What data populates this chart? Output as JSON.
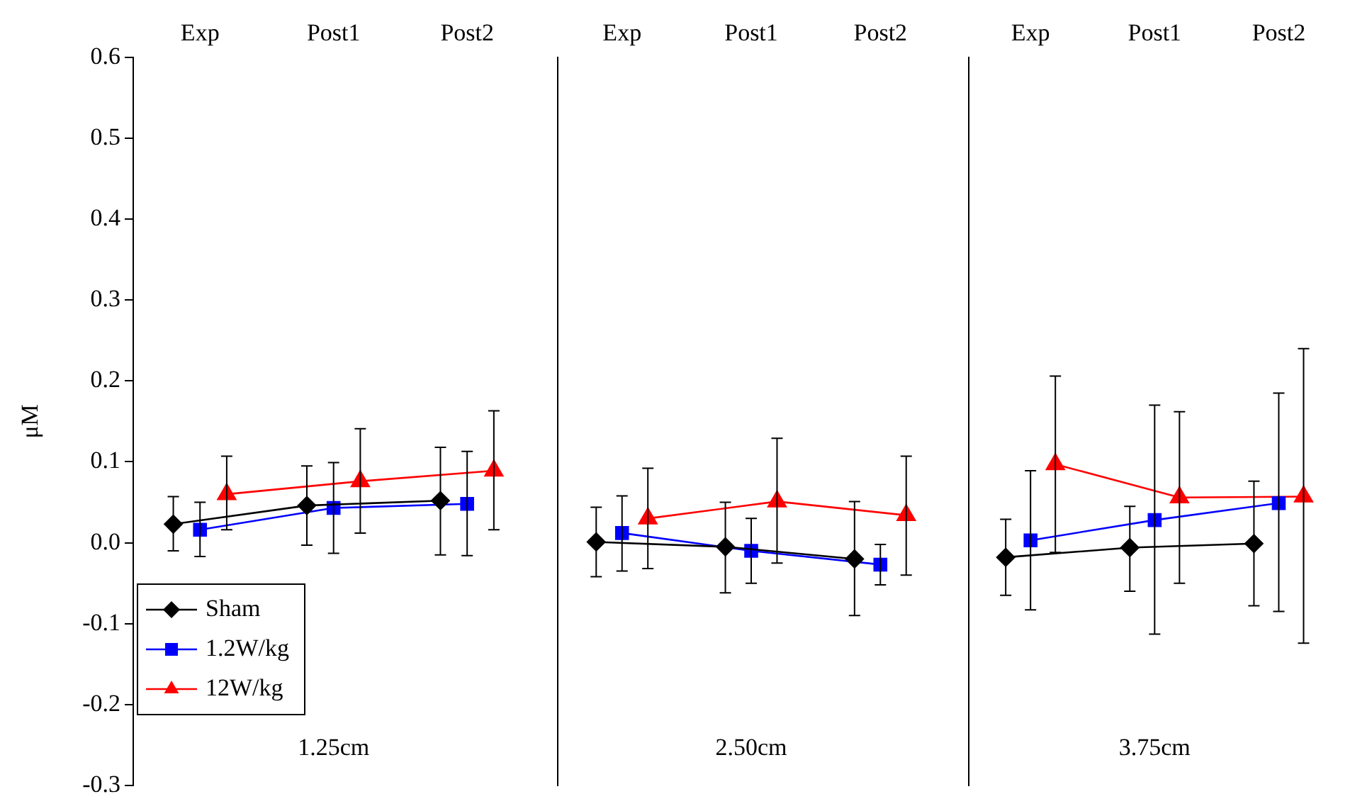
{
  "chart_data": [
    {
      "type": "line",
      "xlabel": "1.25cm",
      "ylabel": "μM",
      "categories": [
        "Exp",
        "Post1",
        "Post2"
      ],
      "ylim": [
        -0.3,
        0.6
      ],
      "yticks": [
        -0.3,
        -0.2,
        -0.1,
        {
          "value": 0,
          "label": "0.0"
        },
        0.1,
        0.2,
        0.3,
        0.4,
        0.5,
        0.6
      ],
      "grid": false,
      "legend": "bottom left",
      "series": [
        {
          "name": "Sham",
          "color": "#000000",
          "marker": "diamond",
          "values": [
            0.023,
            0.046,
            0.052
          ],
          "errors": [
            [
              -0.01,
              0.057
            ],
            [
              -0.003,
              0.095
            ],
            [
              -0.015,
              0.118
            ]
          ]
        },
        {
          "name": "1.2W/kg",
          "color": "#0000ff",
          "marker": "square",
          "values": [
            0.016,
            0.043,
            0.048
          ],
          "errors": [
            [
              -0.017,
              0.05
            ],
            [
              -0.013,
              0.099
            ],
            [
              -0.016,
              0.113
            ]
          ]
        },
        {
          "name": "12W/kg",
          "color": "#ff0000",
          "marker": "triangle",
          "values": [
            0.06,
            0.076,
            0.089
          ],
          "errors": [
            [
              0.016,
              0.107
            ],
            [
              0.012,
              0.141
            ],
            [
              0.016,
              0.163
            ]
          ]
        }
      ]
    },
    {
      "type": "line",
      "xlabel": "2.50cm",
      "categories": [
        "Exp",
        "Post1",
        "Post2"
      ],
      "ylim": [
        -0.3,
        0.6
      ],
      "grid": false,
      "tick_labels": "x",
      "series": [
        {
          "color": "#000000",
          "marker": "diamond",
          "values": [
            0.001,
            -0.005,
            -0.02
          ],
          "errors": [
            [
              -0.042,
              0.044
            ],
            [
              -0.062,
              0.05
            ],
            [
              -0.09,
              0.051
            ]
          ]
        },
        {
          "color": "#0000ff",
          "marker": "square",
          "values": [
            0.012,
            -0.01,
            -0.027
          ],
          "errors": [
            [
              -0.035,
              0.058
            ],
            [
              -0.05,
              0.03
            ],
            [
              -0.052,
              -0.002
            ]
          ]
        },
        {
          "color": "#ff0000",
          "marker": "triangle",
          "values": [
            0.03,
            0.051,
            0.034
          ],
          "errors": [
            [
              -0.032,
              0.092
            ],
            [
              -0.025,
              0.129
            ],
            [
              -0.04,
              0.107
            ]
          ]
        }
      ]
    },
    {
      "type": "line",
      "xlabel": "3.75cm",
      "categories": [
        "Exp",
        "Post1",
        "Post2"
      ],
      "ylim": [
        -0.3,
        0.6
      ],
      "grid": false,
      "tick_labels": "x",
      "series": [
        {
          "color": "#000000",
          "marker": "diamond",
          "values": [
            -0.018,
            -0.006,
            -0.001
          ],
          "errors": [
            [
              -0.065,
              0.029
            ],
            [
              -0.06,
              0.045
            ],
            [
              -0.078,
              0.076
            ]
          ]
        },
        {
          "color": "#0000ff",
          "marker": "square",
          "values": [
            0.003,
            0.028,
            0.049
          ],
          "errors": [
            [
              -0.083,
              0.089
            ],
            [
              -0.113,
              0.17
            ],
            [
              -0.085,
              0.185
            ]
          ]
        },
        {
          "color": "#ff0000",
          "marker": "triangle",
          "values": [
            0.097,
            0.056,
            0.057
          ],
          "errors": [
            [
              -0.012,
              0.206
            ],
            [
              -0.05,
              0.162
            ],
            [
              -0.124,
              0.24
            ]
          ]
        }
      ]
    }
  ]
}
